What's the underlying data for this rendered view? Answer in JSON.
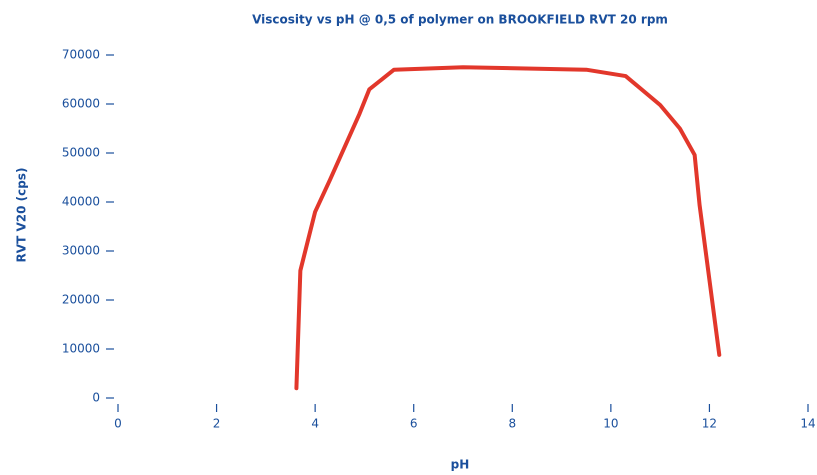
{
  "chart_data": {
    "type": "line",
    "title": "Viscosity vs pH @ 0,5 of polymer on BROOKFIELD RVT 20 rpm",
    "x_label": "pH",
    "y_label": "RVT V20 (cps)",
    "xlim": [
      0,
      14
    ],
    "xticks": [
      0,
      2,
      4,
      6,
      8,
      10,
      12,
      14
    ],
    "ylim": [
      0,
      70000
    ],
    "yticks": [
      0,
      10000,
      20000,
      30000,
      40000,
      50000,
      60000,
      70000
    ],
    "series": [
      {
        "name": "Viscosity",
        "color": "#e2372b",
        "x": [
          3.62,
          3.7,
          4.0,
          4.3,
          4.9,
          5.1,
          5.6,
          7.0,
          9.5,
          10.3,
          11.0,
          11.4,
          11.7,
          11.8,
          12.2
        ],
        "values": [
          2000,
          26000,
          38000,
          44500,
          58000,
          63000,
          67000,
          67500,
          67000,
          65700,
          59800,
          55000,
          49600,
          39400,
          8800
        ]
      }
    ]
  }
}
